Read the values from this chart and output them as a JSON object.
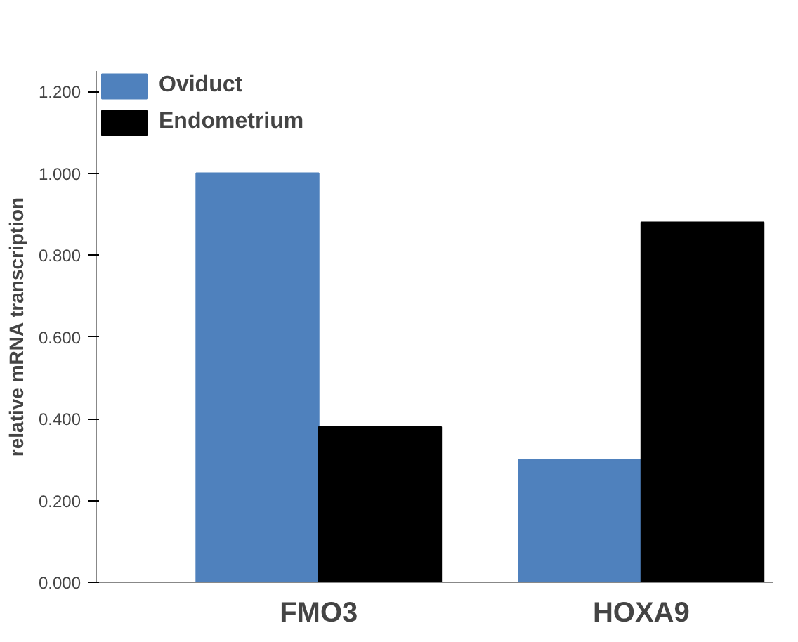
{
  "chart_data": {
    "type": "bar",
    "ylabel": "relative mRNA transcription",
    "categories": [
      "FMO3",
      "HOXA9"
    ],
    "series": [
      {
        "name": "Oviduct",
        "color": "#4f81bd",
        "values": [
          1.0,
          0.3
        ]
      },
      {
        "name": "Endometrium",
        "color": "#000000",
        "values": [
          0.38,
          0.88
        ]
      }
    ],
    "ylim": [
      0,
      1.25
    ],
    "yticks": [
      {
        "value": 0,
        "label": "0.000"
      },
      {
        "value": 0.2,
        "label": "0.200"
      },
      {
        "value": 0.4,
        "label": "0.400"
      },
      {
        "value": 0.6,
        "label": "0.600"
      },
      {
        "value": 0.8,
        "label": "0.800"
      },
      {
        "value": 1.0,
        "label": "1.000"
      },
      {
        "value": 1.2,
        "label": "1.200"
      }
    ],
    "grid": false,
    "legend": "top"
  }
}
